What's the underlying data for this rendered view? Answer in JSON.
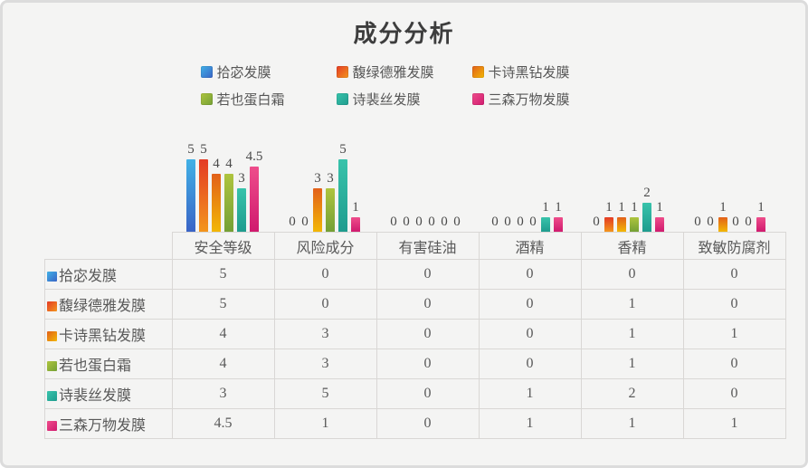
{
  "panel": {
    "background": "#f4f4f3",
    "border_color": "#dcdcdc",
    "text_color": "#595959",
    "table_border_color": "#d9d7d5"
  },
  "chart_data": {
    "type": "bar",
    "title": "成分分析",
    "categories": [
      "安全等级",
      "风险成分",
      "有害硅油",
      "酒精",
      "香精",
      "致敏防腐剂"
    ],
    "series": [
      {
        "name": "拾宓发膜",
        "color_top": "#41b1e6",
        "color_bottom": "#3a64c6",
        "values": [
          5,
          0,
          0,
          0,
          0,
          0
        ]
      },
      {
        "name": "馥绿德雅发膜",
        "color_top": "#e43b25",
        "color_bottom": "#f3951d",
        "values": [
          5,
          0,
          0,
          0,
          1,
          0
        ]
      },
      {
        "name": "卡诗黑钻发膜",
        "color_top": "#e2601a",
        "color_bottom": "#f2b705",
        "values": [
          4,
          3,
          0,
          0,
          1,
          1
        ]
      },
      {
        "name": "若也蛋白霜",
        "color_top": "#aec43e",
        "color_bottom": "#74a035",
        "values": [
          4,
          3,
          0,
          0,
          1,
          0
        ]
      },
      {
        "name": "诗裴丝发膜",
        "color_top": "#38c3ab",
        "color_bottom": "#1f9c8e",
        "values": [
          3,
          5,
          0,
          1,
          2,
          0
        ]
      },
      {
        "name": "三森万物发膜",
        "color_top": "#ee4d8b",
        "color_bottom": "#d01a6e",
        "values": [
          4.5,
          1,
          0,
          1,
          1,
          1
        ]
      }
    ],
    "ylim": [
      0,
      5
    ],
    "grid": false,
    "yaxis_shown": false,
    "legend_position": "top",
    "data_labels_shown": true,
    "data_table_shown": true
  }
}
